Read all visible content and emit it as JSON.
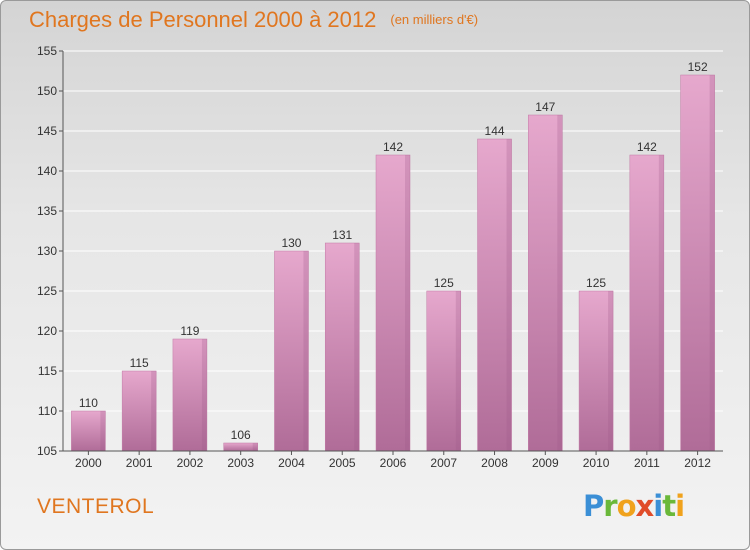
{
  "header": {
    "title": "Charges de Personnel 2000 à 2012",
    "subtitle": "(en milliers d'€)"
  },
  "footer": {
    "commune": "VENTEROL",
    "logo_letters": [
      {
        "char": "P",
        "color": "#3b8fd6"
      },
      {
        "char": "r",
        "color": "#6ab83a"
      },
      {
        "char": "o",
        "color": "#f0a21c"
      },
      {
        "char": "x",
        "color": "#e04c2a"
      },
      {
        "char": "i",
        "color": "#3b8fd6"
      },
      {
        "char": "t",
        "color": "#6ab83a"
      },
      {
        "char": "i",
        "color": "#f0a21c"
      }
    ]
  },
  "colors": {
    "title": "#e0761f",
    "bar_light": "#e6a8cd",
    "bar_dark": "#b06c98",
    "bar_top": "#c27aa6",
    "grid": "#ffffff",
    "axis": "#555555"
  },
  "chart_data": {
    "type": "bar",
    "categories": [
      "2000",
      "2001",
      "2002",
      "2003",
      "2004",
      "2005",
      "2006",
      "2007",
      "2008",
      "2009",
      "2010",
      "2011",
      "2012"
    ],
    "values": [
      110,
      115,
      119,
      106,
      130,
      131,
      142,
      125,
      144,
      147,
      125,
      142,
      152
    ],
    "ylim": [
      105,
      155
    ],
    "yticks": [
      105,
      110,
      115,
      120,
      125,
      130,
      135,
      140,
      145,
      150,
      155
    ],
    "grid": true,
    "data_labels": true
  }
}
